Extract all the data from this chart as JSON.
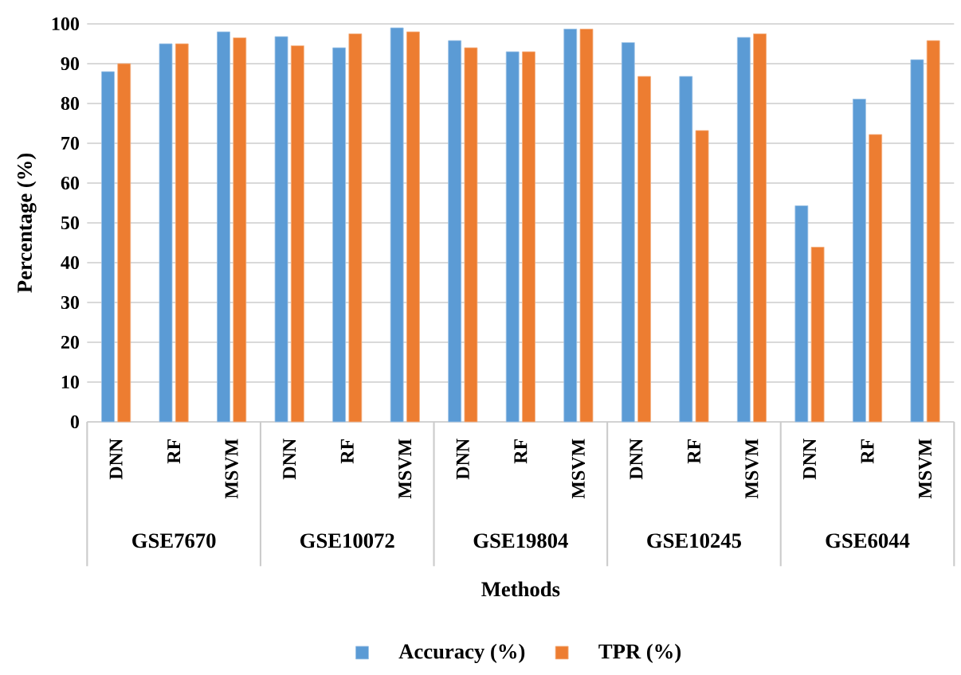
{
  "chart_data": {
    "type": "bar",
    "xlabel": "Methods",
    "ylabel": "Percentage (%)",
    "categories": [
      "DNN",
      "RF",
      "MSVM",
      "DNN",
      "RF",
      "MSVM",
      "DNN",
      "RF",
      "MSVM",
      "DNN",
      "RF",
      "MSVM",
      "DNN",
      "RF",
      "MSVM"
    ],
    "annotations": [
      "GSE7670",
      "GSE10072",
      "GSE19804",
      "GSE10245",
      "GSE6044"
    ],
    "series": [
      {
        "name": "Accuracy (%)",
        "color": "#5b9bd5",
        "values": [
          88,
          95,
          98,
          96.8,
          94,
          99,
          95.8,
          93,
          98.7,
          95.3,
          86.8,
          96.6,
          54.3,
          81.1,
          91
        ]
      },
      {
        "name": "TPR (%)",
        "color": "#ed7d31",
        "values": [
          90,
          95,
          96.5,
          94.5,
          97.5,
          98,
          94,
          93,
          98.7,
          86.8,
          73.2,
          97.5,
          43.9,
          72.2,
          95.8
        ]
      }
    ],
    "ylim": [
      0,
      100
    ],
    "yticks": [
      0,
      10,
      20,
      30,
      40,
      50,
      60,
      70,
      80,
      90,
      100
    ],
    "grid": "y",
    "legend": "bottom"
  }
}
